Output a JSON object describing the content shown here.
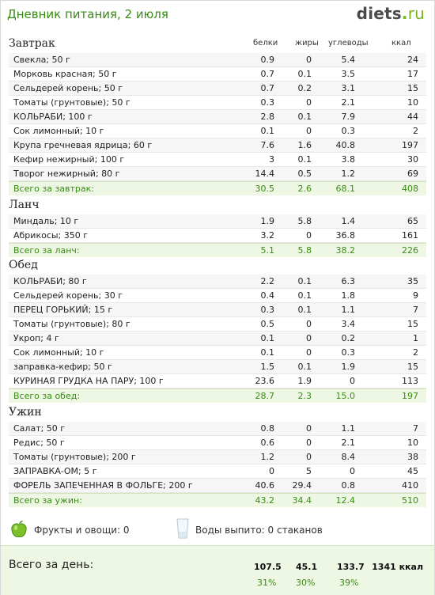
{
  "header": {
    "title": "Дневник питания, 2 июля",
    "logo_main": "diets",
    "logo_dot": ".",
    "logo_tld": "ru"
  },
  "columns": {
    "protein": "белки",
    "fat": "жиры",
    "carbs": "углеводы",
    "kcal": "ккал"
  },
  "meals": [
    {
      "title": "Завтрак",
      "items": [
        {
          "name": "Свекла; 50 г",
          "p": "0.9",
          "f": "0",
          "c": "5.4",
          "k": "24"
        },
        {
          "name": "Морковь красная; 50 г",
          "p": "0.7",
          "f": "0.1",
          "c": "3.5",
          "k": "17"
        },
        {
          "name": "Сельдерей корень; 50 г",
          "p": "0.7",
          "f": "0.2",
          "c": "3.1",
          "k": "15"
        },
        {
          "name": "Томаты (грунтовые); 50 г",
          "p": "0.3",
          "f": "0",
          "c": "2.1",
          "k": "10"
        },
        {
          "name": "КОЛЬРАБИ; 100 г",
          "p": "2.8",
          "f": "0.1",
          "c": "7.9",
          "k": "44"
        },
        {
          "name": "Сок лимонный; 10 г",
          "p": "0.1",
          "f": "0",
          "c": "0.3",
          "k": "2"
        },
        {
          "name": "Крупа гречневая ядрица; 60 г",
          "p": "7.6",
          "f": "1.6",
          "c": "40.8",
          "k": "197"
        },
        {
          "name": "Кефир нежирный; 100 г",
          "p": "3",
          "f": "0.1",
          "c": "3.8",
          "k": "30"
        },
        {
          "name": "Творог нежирный; 80 г",
          "p": "14.4",
          "f": "0.5",
          "c": "1.2",
          "k": "69"
        }
      ],
      "total": {
        "name": "Всего за завтрак:",
        "p": "30.5",
        "f": "2.6",
        "c": "68.1",
        "k": "408"
      }
    },
    {
      "title": "Ланч",
      "items": [
        {
          "name": "Миндаль; 10 г",
          "p": "1.9",
          "f": "5.8",
          "c": "1.4",
          "k": "65"
        },
        {
          "name": "Абрикосы; 350 г",
          "p": "3.2",
          "f": "0",
          "c": "36.8",
          "k": "161"
        }
      ],
      "total": {
        "name": "Всего за ланч:",
        "p": "5.1",
        "f": "5.8",
        "c": "38.2",
        "k": "226"
      }
    },
    {
      "title": "Обед",
      "items": [
        {
          "name": "КОЛЬРАБИ; 80 г",
          "p": "2.2",
          "f": "0.1",
          "c": "6.3",
          "k": "35"
        },
        {
          "name": "Сельдерей корень; 30 г",
          "p": "0.4",
          "f": "0.1",
          "c": "1.8",
          "k": "9"
        },
        {
          "name": "ПЕРЕЦ ГОРЬКИЙ; 15 г",
          "p": "0.3",
          "f": "0.1",
          "c": "1.1",
          "k": "7"
        },
        {
          "name": "Томаты (грунтовые); 80 г",
          "p": "0.5",
          "f": "0",
          "c": "3.4",
          "k": "15"
        },
        {
          "name": "Укроп; 4 г",
          "p": "0.1",
          "f": "0",
          "c": "0.2",
          "k": "1"
        },
        {
          "name": "Сок лимонный; 10 г",
          "p": "0.1",
          "f": "0",
          "c": "0.3",
          "k": "2"
        },
        {
          "name": "заправка-кефир; 50 г",
          "p": "1.5",
          "f": "0.1",
          "c": "1.9",
          "k": "15"
        },
        {
          "name": "КУРИНАЯ ГРУДКА НА ПАРУ; 100 г",
          "p": "23.6",
          "f": "1.9",
          "c": "0",
          "k": "113"
        }
      ],
      "total": {
        "name": "Всего за обед:",
        "p": "28.7",
        "f": "2.3",
        "c": "15.0",
        "k": "197"
      }
    },
    {
      "title": "Ужин",
      "items": [
        {
          "name": "Салат; 50 г",
          "p": "0.8",
          "f": "0",
          "c": "1.1",
          "k": "7"
        },
        {
          "name": "Редис; 50 г",
          "p": "0.6",
          "f": "0",
          "c": "2.1",
          "k": "10"
        },
        {
          "name": "Томаты (грунтовые); 200 г",
          "p": "1.2",
          "f": "0",
          "c": "8.4",
          "k": "38"
        },
        {
          "name": "ЗАПРАВКА-ОМ; 5 г",
          "p": "0",
          "f": "5",
          "c": "0",
          "k": "45"
        },
        {
          "name": "ФОРЕЛЬ ЗАПЕЧЕННАЯ В ФОЛЬГЕ; 200 г",
          "p": "40.6",
          "f": "29.4",
          "c": "0.8",
          "k": "410"
        }
      ],
      "total": {
        "name": "Всего за ужин:",
        "p": "43.2",
        "f": "34.4",
        "c": "12.4",
        "k": "510"
      }
    }
  ],
  "footer": {
    "fruits": "Фрукты и овощи: 0",
    "water": "Воды выпито: 0 стаканов"
  },
  "day": {
    "label": "Всего за день:",
    "p": "107.5",
    "f": "45.1",
    "c": "133.7",
    "k": "1341 ккал",
    "pp": "31%",
    "fp": "30%",
    "cp": "39%"
  }
}
